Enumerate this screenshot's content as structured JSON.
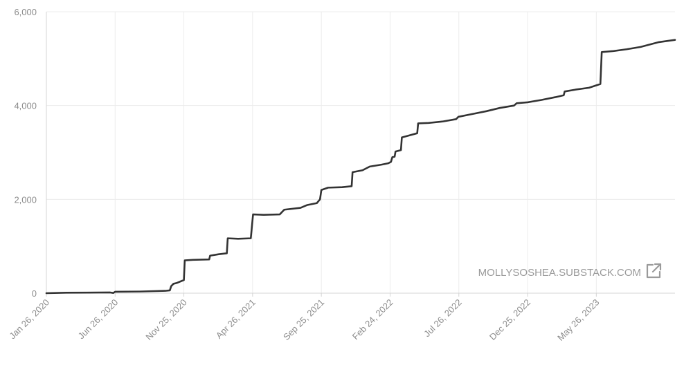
{
  "watermark": "MOLLYSOSHEA.SUBSTACK.COM",
  "icons": {
    "external_link": "external-link-icon"
  },
  "colors": {
    "line": "#333333",
    "grid": "#ececec",
    "text": "#8c8c8c"
  },
  "chart_data": {
    "type": "line",
    "title": "",
    "xlabel": "",
    "ylabel": "",
    "ylim": [
      0,
      6000
    ],
    "y_ticks": [
      0,
      2000,
      4000,
      6000
    ],
    "y_tick_labels": [
      "0",
      "2,000",
      "4,000",
      "6,000"
    ],
    "x_range": [
      "2020-01-26",
      "2023-11-16"
    ],
    "x_ticks": [
      "2020-01-26",
      "2020-06-26",
      "2020-11-25",
      "2021-04-26",
      "2021-09-25",
      "2022-02-24",
      "2022-07-26",
      "2022-12-25",
      "2023-05-26"
    ],
    "x_tick_labels": [
      "Jan 26, 2020",
      "Jun 26, 2020",
      "Nov 25, 2020",
      "Apr 26, 2021",
      "Sep 25, 2021",
      "Feb 24, 2022",
      "Jul 26, 2022",
      "Dec 25, 2022",
      "May 26, 2023"
    ],
    "grid": true,
    "series": [
      {
        "points": [
          [
            "2020-01-26",
            0
          ],
          [
            "2020-03-10",
            10
          ],
          [
            "2020-06-15",
            15
          ],
          [
            "2020-06-22",
            5
          ],
          [
            "2020-06-26",
            30
          ],
          [
            "2020-08-20",
            35
          ],
          [
            "2020-10-15",
            50
          ],
          [
            "2020-10-25",
            60
          ],
          [
            "2020-10-28",
            150
          ],
          [
            "2020-11-02",
            200
          ],
          [
            "2020-11-10",
            220
          ],
          [
            "2020-11-25",
            280
          ],
          [
            "2020-11-27",
            700
          ],
          [
            "2020-12-15",
            710
          ],
          [
            "2021-01-20",
            720
          ],
          [
            "2021-01-22",
            800
          ],
          [
            "2021-02-10",
            830
          ],
          [
            "2021-02-28",
            850
          ],
          [
            "2021-03-02",
            1170
          ],
          [
            "2021-03-25",
            1160
          ],
          [
            "2021-04-22",
            1170
          ],
          [
            "2021-04-27",
            1680
          ],
          [
            "2021-05-20",
            1670
          ],
          [
            "2021-06-25",
            1680
          ],
          [
            "2021-07-05",
            1780
          ],
          [
            "2021-08-10",
            1820
          ],
          [
            "2021-08-25",
            1880
          ],
          [
            "2021-09-15",
            1920
          ],
          [
            "2021-09-22",
            2000
          ],
          [
            "2021-09-25",
            2200
          ],
          [
            "2021-10-10",
            2250
          ],
          [
            "2021-11-10",
            2260
          ],
          [
            "2021-12-01",
            2280
          ],
          [
            "2021-12-03",
            2580
          ],
          [
            "2021-12-25",
            2620
          ],
          [
            "2022-01-10",
            2700
          ],
          [
            "2022-02-05",
            2740
          ],
          [
            "2022-02-20",
            2770
          ],
          [
            "2022-02-26",
            2800
          ],
          [
            "2022-03-01",
            2900
          ],
          [
            "2022-03-06",
            2910
          ],
          [
            "2022-03-08",
            3020
          ],
          [
            "2022-03-20",
            3050
          ],
          [
            "2022-03-22",
            3320
          ],
          [
            "2022-04-10",
            3370
          ],
          [
            "2022-04-25",
            3410
          ],
          [
            "2022-04-27",
            3620
          ],
          [
            "2022-05-20",
            3630
          ],
          [
            "2022-06-20",
            3660
          ],
          [
            "2022-07-20",
            3710
          ],
          [
            "2022-07-25",
            3760
          ],
          [
            "2022-08-25",
            3820
          ],
          [
            "2022-09-25",
            3880
          ],
          [
            "2022-10-25",
            3950
          ],
          [
            "2022-11-25",
            4000
          ],
          [
            "2022-12-01",
            4050
          ],
          [
            "2022-12-25",
            4070
          ],
          [
            "2023-01-25",
            4120
          ],
          [
            "2023-02-25",
            4180
          ],
          [
            "2023-03-15",
            4220
          ],
          [
            "2023-03-17",
            4300
          ],
          [
            "2023-04-10",
            4340
          ],
          [
            "2023-05-10",
            4380
          ],
          [
            "2023-06-04",
            4460
          ],
          [
            "2023-06-07",
            5140
          ],
          [
            "2023-07-01",
            5160
          ],
          [
            "2023-08-01",
            5200
          ],
          [
            "2023-09-01",
            5250
          ],
          [
            "2023-10-10",
            5350
          ],
          [
            "2023-11-16",
            5400
          ]
        ]
      }
    ]
  }
}
